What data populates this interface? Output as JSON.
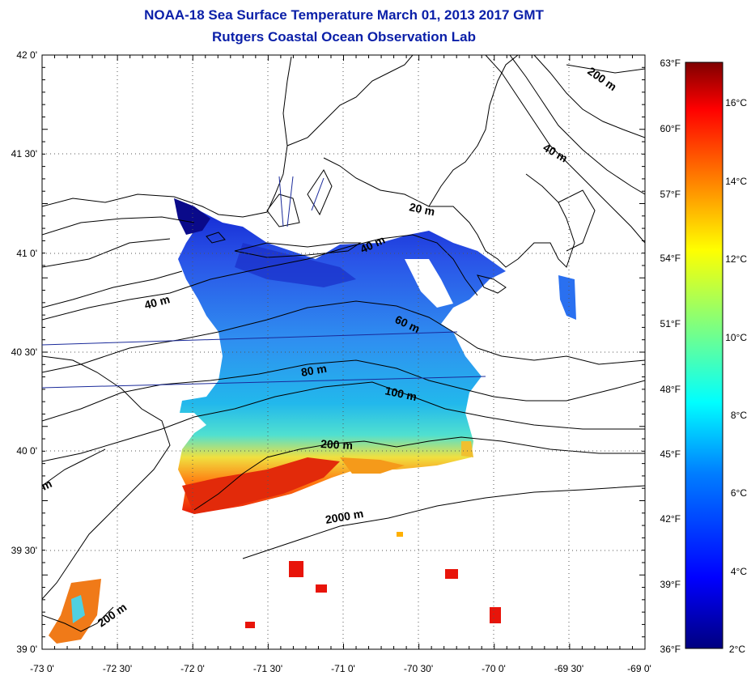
{
  "title_line1": "NOAA-18 Sea Surface Temperature March 01, 2013 2017 GMT",
  "title_line2": "Rutgers Coastal Ocean Observation Lab",
  "longitude_ticks": [
    "-73 0'",
    "-72 30'",
    "-72 0'",
    "-71 30'",
    "-71 0'",
    "-70 30'",
    "-70 0'",
    "-69 30'",
    "-69 0'"
  ],
  "latitude_ticks": [
    "42 0'",
    "41 30'",
    "41 0'",
    "40 30'",
    "40 0'",
    "39 30'",
    "39 0'"
  ],
  "fahrenheit_ticks": [
    "63°F",
    "60°F",
    "57°F",
    "54°F",
    "51°F",
    "48°F",
    "45°F",
    "42°F",
    "39°F",
    "36°F"
  ],
  "celsius_ticks": [
    "16°C",
    "14°C",
    "12°C",
    "10°C",
    "8°C",
    "6°C",
    "4°C",
    "2°C"
  ],
  "contour_labels": {
    "m20": "20 m",
    "m40a": "40 m",
    "m40b": "40 m",
    "m40c": "40 m",
    "m60": "60 m",
    "m80": "80 m",
    "m100": "100 m",
    "m200a": "200 m",
    "m200b": "200 m",
    "m200c": "200 m",
    "m2000": "2000 m",
    "mpartial": "m"
  },
  "colors": {
    "title": "#0a1fa8",
    "colorbar": [
      "#00007f",
      "#0000ff",
      "#007fff",
      "#00ffff",
      "#7fff7f",
      "#ffff00",
      "#ff7f00",
      "#ff0000",
      "#7f0000"
    ]
  }
}
